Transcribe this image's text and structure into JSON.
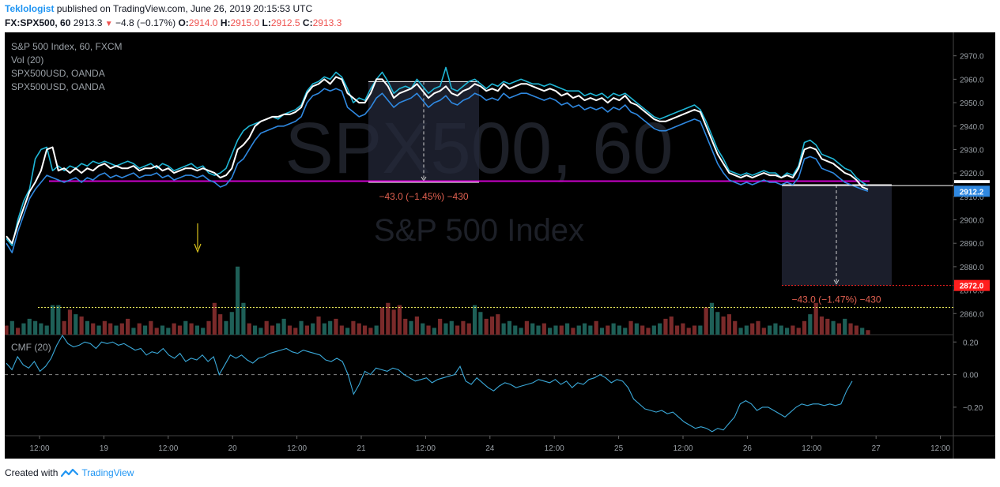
{
  "header": {
    "author": "Teklologist",
    "published_text": "published on TradingView.com, June 26, 2019 20:15:53 UTC",
    "symbol": "FX:SPX500, 60",
    "last": "2913.3",
    "change": "−4.8 (−0.17%)",
    "o_label": "O:",
    "o": "2914.0",
    "h_label": "H:",
    "h": "2915.0",
    "l_label": "L:",
    "l": "2912.5",
    "c_label": "C:",
    "c": "2913.3"
  },
  "legend": {
    "line1": "S&P 500 Index, 60, FXCM",
    "line2": "Vol (20)",
    "line3": "SPX500USD, OANDA",
    "line4": "SPX500USD, OANDA",
    "cmf_label": "CMF (20)"
  },
  "watermark": {
    "big": "SPX500, 60",
    "small": "S&P 500 Index"
  },
  "measure_labels": {
    "left": "−43.0 (−1.45%) −430",
    "right": "−43.0 (−1.47%) −430"
  },
  "footer": {
    "created_with": "Created with",
    "brand": "TradingView"
  },
  "colors": {
    "background": "#000000",
    "price_white": "#ffffff",
    "price_cyan": "#1fb6d6",
    "price_blue": "#2f88e0",
    "support_line": "#cc00cc",
    "vol_up": "#1e5f57",
    "vol_down": "#7a2a2a",
    "cmf": "#3aa8d8",
    "dotted_yellow": "#e8e85a",
    "arrow_yellow": "#d9c21c",
    "target_red": "#ff2222"
  },
  "chart_data": {
    "type": "line",
    "x_ticks": [
      "12:00",
      "19",
      "12:00",
      "20",
      "12:00",
      "21",
      "12:00",
      "24",
      "12:00",
      "25",
      "12:00",
      "26",
      "12:00",
      "27",
      "12:00"
    ],
    "y_ticks": [
      2860,
      2870,
      2880,
      2890,
      2900,
      2910,
      2920,
      2930,
      2940,
      2950,
      2960,
      2970
    ],
    "y_tick_labels": [
      "2860.0",
      "2870.0",
      "2880.0",
      "2890.0",
      "2900.0",
      "2910.0",
      "2920.0",
      "2930.0",
      "2940.0",
      "2950.0",
      "2960.0",
      "2970.0"
    ],
    "ylim": [
      2851,
      2980
    ],
    "support_level": 2916.5,
    "price_tags": {
      "cyan": "2914.6",
      "last": "2913.3",
      "blue": "2912.2",
      "target": "2872.0"
    },
    "target_level": 2872.0,
    "measure_left": {
      "top": 2959,
      "bottom": 2916,
      "label": "−43.0 (−1.45%) −430"
    },
    "measure_right": {
      "top": 2915,
      "bottom": 2872,
      "label": "−43.0 (−1.47%) −430"
    },
    "series": [
      {
        "color": "#ffffff",
        "values": [
          2893,
          2890,
          2898,
          2905,
          2912,
          2916,
          2921,
          2930,
          2931,
          2921,
          2922,
          2920,
          2922,
          2920,
          2922,
          2921,
          2923,
          2924,
          2922,
          2923,
          2922,
          2922,
          2923,
          2921,
          2922,
          2922,
          2923,
          2921,
          2922,
          2920,
          2921,
          2922,
          2922,
          2921,
          2922,
          2921,
          2920,
          2918,
          2919,
          2922,
          2930,
          2932,
          2935,
          2940,
          2942,
          2943,
          2944,
          2944,
          2945,
          2945,
          2946,
          2948,
          2954,
          2957,
          2958,
          2960,
          2958,
          2961,
          2960,
          2954,
          2952,
          2950,
          2950,
          2954,
          2960,
          2960,
          2957,
          2952,
          2954,
          2955,
          2956,
          2958,
          2955,
          2952,
          2954,
          2955,
          2957,
          2954,
          2953,
          2955,
          2956,
          2958,
          2957,
          2955,
          2956,
          2955,
          2958,
          2956,
          2957,
          2958,
          2958,
          2957,
          2956,
          2955,
          2956,
          2955,
          2953,
          2954,
          2952,
          2953,
          2951,
          2952,
          2951,
          2952,
          2950,
          2952,
          2951,
          2953,
          2950,
          2949,
          2947,
          2945,
          2943,
          2942,
          2942,
          2943,
          2944,
          2945,
          2946,
          2947,
          2946,
          2940,
          2934,
          2928,
          2924,
          2920,
          2919,
          2918,
          2919,
          2918,
          2919,
          2920,
          2919,
          2919,
          2918,
          2919,
          2918,
          2922,
          2930,
          2931,
          2930,
          2926,
          2925,
          2924,
          2922,
          2920,
          2919,
          2917,
          2914,
          2913
        ]
      },
      {
        "color": "#1fb6d6",
        "values": [
          2892,
          2889,
          2900,
          2908,
          2913,
          2926,
          2930,
          2931,
          2921,
          2923,
          2921,
          2923,
          2922,
          2924,
          2923,
          2925,
          2924,
          2925,
          2924,
          2923,
          2924,
          2925,
          2924,
          2922,
          2923,
          2924,
          2922,
          2924,
          2923,
          2921,
          2922,
          2923,
          2924,
          2922,
          2923,
          2920,
          2919,
          2920,
          2922,
          2928,
          2934,
          2938,
          2940,
          2941,
          2942,
          2943,
          2944,
          2943,
          2945,
          2946,
          2947,
          2949,
          2955,
          2958,
          2959,
          2961,
          2960,
          2963,
          2961,
          2956,
          2950,
          2952,
          2951,
          2956,
          2960,
          2963,
          2959,
          2954,
          2956,
          2957,
          2956,
          2960,
          2957,
          2954,
          2956,
          2957,
          2965,
          2956,
          2955,
          2957,
          2959,
          2960,
          2958,
          2956,
          2958,
          2957,
          2959,
          2958,
          2959,
          2960,
          2959,
          2958,
          2958,
          2957,
          2958,
          2957,
          2956,
          2955,
          2955,
          2955,
          2953,
          2954,
          2953,
          2954,
          2952,
          2954,
          2953,
          2954,
          2952,
          2950,
          2948,
          2946,
          2944,
          2943,
          2944,
          2945,
          2946,
          2947,
          2948,
          2949,
          2947,
          2942,
          2936,
          2930,
          2926,
          2921,
          2920,
          2919,
          2920,
          2919,
          2920,
          2921,
          2920,
          2920,
          2918,
          2920,
          2919,
          2923,
          2933,
          2934,
          2932,
          2928,
          2927,
          2926,
          2924,
          2922,
          2921,
          2918,
          2916,
          2914.6
        ]
      },
      {
        "color": "#2f88e0",
        "values": [
          2890,
          2886,
          2895,
          2902,
          2909,
          2913,
          2916,
          2919,
          2918,
          2917,
          2916,
          2917,
          2918,
          2916,
          2918,
          2917,
          2919,
          2920,
          2918,
          2919,
          2918,
          2919,
          2920,
          2918,
          2919,
          2919,
          2920,
          2918,
          2919,
          2917,
          2918,
          2919,
          2919,
          2918,
          2919,
          2917,
          2916,
          2914,
          2915,
          2918,
          2924,
          2926,
          2930,
          2934,
          2937,
          2938,
          2939,
          2940,
          2940,
          2941,
          2942,
          2944,
          2950,
          2953,
          2954,
          2956,
          2955,
          2956,
          2955,
          2948,
          2946,
          2944,
          2945,
          2948,
          2952,
          2954,
          2951,
          2948,
          2950,
          2951,
          2952,
          2954,
          2951,
          2948,
          2950,
          2951,
          2953,
          2950,
          2949,
          2951,
          2952,
          2954,
          2953,
          2951,
          2952,
          2951,
          2954,
          2952,
          2953,
          2954,
          2954,
          2953,
          2952,
          2951,
          2952,
          2951,
          2949,
          2950,
          2948,
          2949,
          2947,
          2948,
          2947,
          2948,
          2946,
          2948,
          2947,
          2949,
          2946,
          2945,
          2943,
          2941,
          2939,
          2938,
          2938,
          2939,
          2940,
          2941,
          2942,
          2943,
          2942,
          2936,
          2930,
          2924,
          2920,
          2917,
          2916,
          2915,
          2916,
          2915,
          2916,
          2917,
          2916,
          2916,
          2915,
          2916,
          2915,
          2918,
          2926,
          2927,
          2926,
          2922,
          2921,
          2920,
          2918,
          2916,
          2915,
          2914,
          2913,
          2912.2
        ]
      }
    ],
    "volume": {
      "count": 150,
      "values": [
        4,
        6,
        3,
        5,
        7,
        6,
        5,
        4,
        13,
        13,
        6,
        11,
        9,
        8,
        6,
        5,
        4,
        6,
        5,
        4,
        5,
        7,
        3,
        5,
        4,
        6,
        3,
        4,
        3,
        5,
        4,
        6,
        5,
        4,
        3,
        6,
        14,
        9,
        6,
        10,
        30,
        14,
        5,
        4,
        3,
        6,
        4,
        5,
        7,
        4,
        3,
        6,
        4,
        5,
        8,
        5,
        6,
        7,
        4,
        3,
        6,
        5,
        4,
        3,
        4,
        12,
        14,
        11,
        13,
        7,
        6,
        8,
        5,
        4,
        3,
        7,
        5,
        6,
        4,
        6,
        5,
        13,
        10,
        7,
        8,
        9,
        5,
        6,
        4,
        3,
        6,
        5,
        4,
        5,
        3,
        4,
        4,
        5,
        3,
        4,
        5,
        4,
        6,
        3,
        4,
        5,
        4,
        3,
        6,
        5,
        4,
        3,
        4,
        5,
        7,
        8,
        4,
        5,
        3,
        4,
        4,
        12,
        14,
        10,
        8,
        9,
        6,
        3,
        4,
        5,
        6,
        3,
        4,
        5,
        4,
        3,
        4,
        3,
        6,
        9,
        14,
        8,
        7,
        6,
        5,
        7,
        5,
        4,
        3,
        2
      ],
      "up": [
        0,
        1,
        0,
        1,
        1,
        1,
        1,
        1,
        1,
        1,
        0,
        0,
        1,
        0,
        1,
        0,
        1,
        0,
        0,
        1,
        0,
        0,
        1,
        0,
        1,
        0,
        0,
        1,
        1,
        0,
        0,
        1,
        0,
        1,
        1,
        0,
        0,
        0,
        1,
        1,
        1,
        1,
        0,
        1,
        1,
        0,
        0,
        1,
        1,
        0,
        0,
        1,
        0,
        1,
        0,
        1,
        1,
        0,
        0,
        1,
        0,
        0,
        0,
        0,
        1,
        0,
        0,
        0,
        0,
        0,
        1,
        0,
        1,
        0,
        1,
        0,
        1,
        1,
        0,
        0,
        0,
        1,
        1,
        0,
        0,
        0,
        1,
        1,
        1,
        1,
        0,
        1,
        1,
        0,
        1,
        1,
        0,
        1,
        0,
        1,
        1,
        1,
        0,
        1,
        0,
        1,
        1,
        1,
        0,
        1,
        0,
        0,
        1,
        1,
        0,
        0,
        0,
        0,
        0,
        0,
        1,
        0,
        1,
        1,
        0,
        0,
        0,
        1,
        1,
        0,
        0,
        0,
        1,
        1,
        1,
        1,
        0,
        0,
        0,
        1,
        0,
        0,
        0,
        1,
        0,
        1,
        0,
        0,
        1,
        0
      ]
    },
    "volume_ma_level": 12,
    "cmf": {
      "y_ticks": [
        0.2,
        0.0,
        -0.2
      ],
      "y_tick_labels": [
        "0.20",
        "0.00",
        "−0.20"
      ],
      "ylim": [
        -0.37,
        0.24
      ],
      "values": [
        0.07,
        0.03,
        0.11,
        0.06,
        0.04,
        0.08,
        0.02,
        0.05,
        0.1,
        0.18,
        0.24,
        0.19,
        0.17,
        0.18,
        0.2,
        0.19,
        0.16,
        0.2,
        0.19,
        0.2,
        0.18,
        0.19,
        0.17,
        0.15,
        0.16,
        0.12,
        0.14,
        0.13,
        0.16,
        0.12,
        0.1,
        0.13,
        0.08,
        0.1,
        0.09,
        0.12,
        0.08,
        0.11,
        0.0,
        0.06,
        0.12,
        0.1,
        0.12,
        0.09,
        0.07,
        0.1,
        0.11,
        0.13,
        0.14,
        0.15,
        0.16,
        0.14,
        0.13,
        0.15,
        0.14,
        0.13,
        0.12,
        0.09,
        0.08,
        0.1,
        0.08,
        0.0,
        -0.12,
        -0.06,
        0.02,
        0.0,
        0.04,
        0.03,
        0.02,
        0.04,
        0.03,
        0.0,
        -0.02,
        -0.04,
        -0.03,
        -0.02,
        -0.05,
        -0.03,
        -0.02,
        -0.01,
        0.0,
        0.05,
        -0.04,
        -0.06,
        -0.02,
        -0.05,
        -0.08,
        -0.1,
        -0.07,
        -0.05,
        -0.06,
        -0.08,
        -0.07,
        -0.06,
        -0.05,
        -0.03,
        -0.04,
        -0.05,
        -0.03,
        -0.06,
        -0.04,
        -0.08,
        -0.05,
        -0.06,
        -0.03,
        -0.02,
        0.0,
        -0.02,
        -0.05,
        -0.03,
        -0.04,
        -0.08,
        -0.15,
        -0.18,
        -0.21,
        -0.22,
        -0.23,
        -0.22,
        -0.24,
        -0.23,
        -0.26,
        -0.29,
        -0.31,
        -0.33,
        -0.32,
        -0.33,
        -0.35,
        -0.33,
        -0.34,
        -0.3,
        -0.26,
        -0.18,
        -0.16,
        -0.18,
        -0.22,
        -0.2,
        -0.2,
        -0.22,
        -0.24,
        -0.26,
        -0.23,
        -0.2,
        -0.18,
        -0.19,
        -0.18,
        -0.18,
        -0.19,
        -0.18,
        -0.19,
        -0.18,
        -0.1,
        -0.04
      ]
    }
  }
}
